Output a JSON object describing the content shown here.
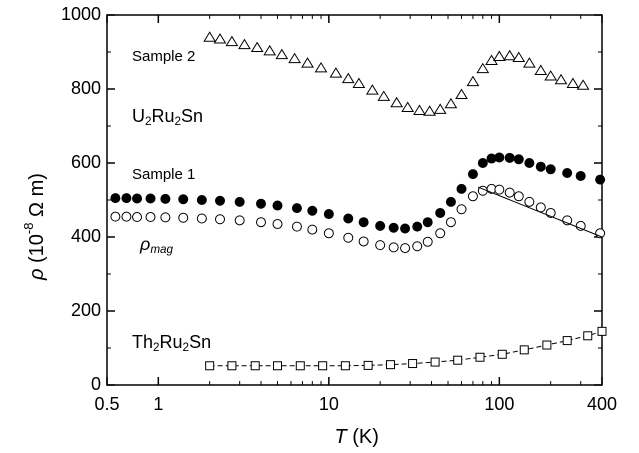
{
  "chart_data": {
    "type": "scatter",
    "log_x": true,
    "xlim": [
      0.5,
      400
    ],
    "ylim": [
      0,
      1000
    ],
    "xticks": [
      0.5,
      1,
      10,
      100,
      400
    ],
    "xminorticks": [
      2,
      3,
      4,
      5,
      6,
      7,
      8,
      9,
      20,
      30,
      40,
      50,
      60,
      70,
      80,
      90,
      200,
      300
    ],
    "yticks": [
      0,
      200,
      400,
      600,
      800,
      1000
    ],
    "yminorticks": [
      100,
      300,
      500,
      700,
      900
    ],
    "x_label": [
      "T",
      " (K)"
    ],
    "y_label": [
      "ρ",
      " (10",
      "-8",
      " Ω m)"
    ],
    "annotations": [
      {
        "parts": [
          "Sample 2"
        ]
      },
      {
        "parts": [
          "U",
          "2",
          "Ru",
          "2",
          "Sn"
        ]
      },
      {
        "parts": [
          "Sample 1"
        ]
      },
      {
        "parts": [
          "ρ",
          "mag"
        ]
      },
      {
        "parts": [
          "Th",
          "2",
          "Ru",
          "2",
          "Sn"
        ]
      }
    ],
    "series": [
      {
        "marker": "triangle",
        "color": "#000000",
        "x": [
          2,
          2.3,
          2.7,
          3.2,
          3.8,
          4.5,
          5.3,
          6.3,
          7.5,
          9,
          11,
          13,
          15,
          18,
          21,
          25,
          29,
          34,
          39,
          45,
          52,
          60,
          70,
          80,
          90,
          100,
          115,
          130,
          150,
          175,
          200,
          230,
          270,
          310
        ],
        "values": [
          940,
          935,
          928,
          920,
          912,
          903,
          893,
          882,
          870,
          857,
          843,
          828,
          815,
          797,
          780,
          763,
          750,
          742,
          740,
          745,
          760,
          785,
          820,
          855,
          877,
          888,
          890,
          885,
          870,
          850,
          835,
          825,
          815,
          810
        ]
      },
      {
        "marker": "filled-circle",
        "color": "#000000",
        "x": [
          0.56,
          0.65,
          0.75,
          0.9,
          1.1,
          1.4,
          1.8,
          2.3,
          3,
          4,
          5,
          6.5,
          8,
          10,
          13,
          16,
          20,
          24,
          28,
          33,
          38,
          45,
          52,
          60,
          70,
          80,
          90,
          100,
          115,
          130,
          150,
          175,
          200,
          250,
          300,
          390
        ],
        "values": [
          505,
          505,
          504,
          504,
          503,
          502,
          500,
          498,
          495,
          490,
          485,
          478,
          471,
          462,
          450,
          440,
          430,
          425,
          423,
          428,
          440,
          465,
          495,
          530,
          570,
          600,
          612,
          615,
          614,
          610,
          600,
          590,
          583,
          573,
          565,
          555
        ]
      },
      {
        "marker": "open-circle",
        "color": "#000000",
        "x": [
          0.56,
          0.65,
          0.75,
          0.9,
          1.1,
          1.4,
          1.8,
          2.3,
          3,
          4,
          5,
          6.5,
          8,
          10,
          13,
          16,
          20,
          24,
          28,
          33,
          38,
          45,
          52,
          60,
          70,
          80,
          90,
          100,
          115,
          130,
          150,
          175,
          200,
          250,
          300,
          390
        ],
        "values": [
          455,
          455,
          454,
          454,
          453,
          452,
          450,
          448,
          445,
          440,
          435,
          428,
          420,
          410,
          398,
          388,
          378,
          372,
          370,
          375,
          387,
          410,
          440,
          475,
          510,
          525,
          530,
          528,
          520,
          510,
          495,
          480,
          465,
          445,
          430,
          410
        ]
      },
      {
        "marker": "square",
        "line": "dashed",
        "color": "#000000",
        "x": [
          2,
          2.7,
          3.7,
          5,
          6.8,
          9.2,
          12.5,
          17,
          23,
          31,
          42,
          57,
          77,
          104,
          140,
          190,
          250,
          330,
          400
        ],
        "values": [
          52,
          52,
          52,
          52,
          52,
          52,
          52,
          53,
          55,
          58,
          62,
          67,
          75,
          83,
          95,
          108,
          120,
          133,
          145
        ]
      },
      {
        "marker": "none",
        "line": "solid",
        "color": "#000000",
        "x": [
          75,
          400
        ],
        "values": [
          535,
          400
        ]
      }
    ]
  }
}
